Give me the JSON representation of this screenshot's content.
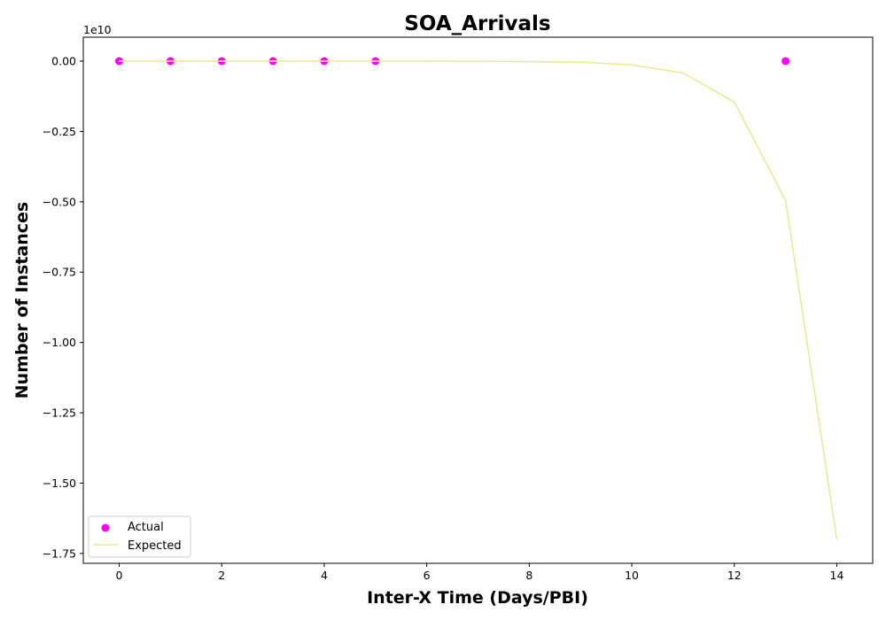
{
  "chart_data": {
    "type": "line",
    "title": "SOA_Arrivals",
    "xlabel": "Inter-X Time (Days/PBI)",
    "ylabel": "Number of Instances",
    "offset_label": "1e10",
    "xlim": [
      -0.7,
      14.7
    ],
    "ylim": [
      -1.785,
      0.085
    ],
    "x_ticks": [
      0,
      2,
      4,
      6,
      8,
      10,
      12,
      14
    ],
    "x_tick_labels": [
      "0",
      "2",
      "4",
      "6",
      "8",
      "10",
      "12",
      "14"
    ],
    "y_ticks": [
      0.0,
      -0.25,
      -0.5,
      -0.75,
      -1.0,
      -1.25,
      -1.5,
      -1.75
    ],
    "y_tick_labels": [
      "0.00",
      "−0.25",
      "−0.50",
      "−0.75",
      "−1.00",
      "−1.25",
      "−1.50",
      "−1.75"
    ],
    "grid": false,
    "legend_position": "lower-left",
    "series": [
      {
        "name": "Actual",
        "kind": "scatter",
        "color": "#ff00ff",
        "x": [
          0,
          1,
          2,
          3,
          4,
          5,
          13
        ],
        "y": [
          0,
          0,
          0,
          0,
          0,
          0,
          0
        ]
      },
      {
        "name": "Expected",
        "kind": "line",
        "color": "#f0e68c",
        "x": [
          0,
          1,
          2,
          3,
          4,
          5,
          6,
          7,
          8,
          9,
          10,
          11,
          12,
          13,
          14
        ],
        "y": [
          0,
          0,
          0,
          0,
          0,
          0,
          0,
          -0.0005,
          -0.002,
          -0.004,
          -0.013,
          -0.042,
          -0.145,
          -0.495,
          -1.7
        ]
      }
    ]
  }
}
